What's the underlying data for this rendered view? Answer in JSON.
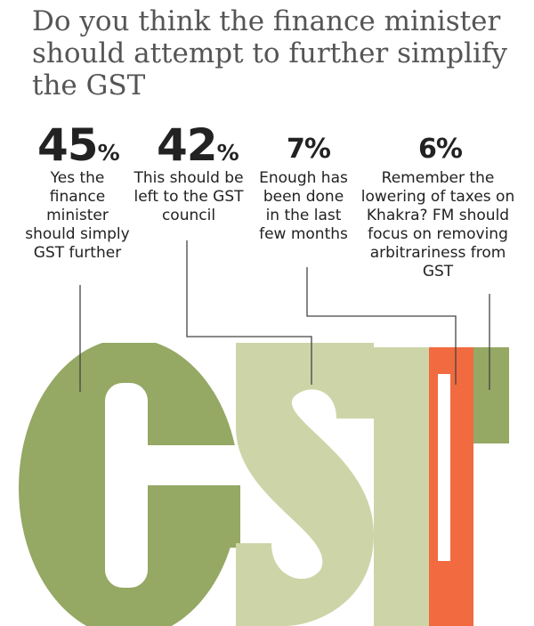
{
  "title": "Do you think the finance minister should attempt to further simplify the GST",
  "chart_data": {
    "type": "bar",
    "title": "Do you think the finance minister should attempt to further simplify the GST",
    "categories": [
      "Yes the finance minister should simply GST further",
      "This should be left to the GST council",
      "Enough has been done in the last few months",
      "Remember the lowering of taxes on Khakra? FM should focus on removing arbitrariness from GST"
    ],
    "values": [
      45,
      42,
      7,
      6
    ],
    "unit": "%",
    "big_letters": "GST",
    "colors": [
      "#95a864",
      "#cdd5a8",
      "#cdd5a8",
      "#f26a3f",
      "#95a864"
    ]
  },
  "answers": [
    {
      "value": "45",
      "unit": "%",
      "label": "Yes the finance minister should simply GST further"
    },
    {
      "value": "42",
      "unit": "%",
      "label": "This should be left to the GST council"
    },
    {
      "value": "7",
      "unit": "%",
      "label": "Enough has been done in the last few months"
    },
    {
      "value": "6",
      "unit": "%",
      "label": "Remember the lowering of taxes on Khakra? FM should focus on removing arbitrariness from GST"
    }
  ],
  "colors": {
    "dark_green": "#95a864",
    "light_green": "#cdd5a8",
    "orange": "#f26a3f",
    "line": "#444444"
  }
}
